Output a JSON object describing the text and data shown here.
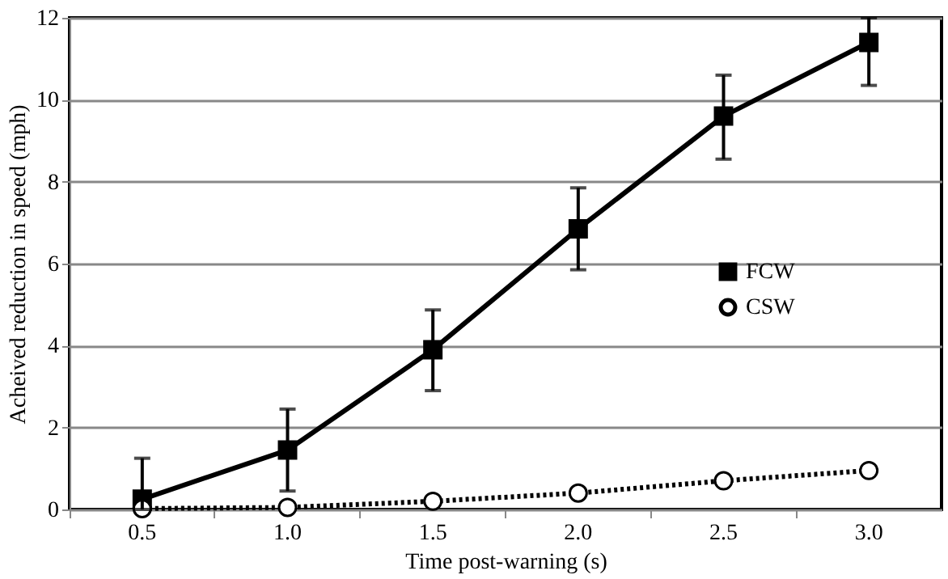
{
  "chart_data": {
    "type": "line",
    "xlabel": "Time post-warning (s)",
    "ylabel": "Acheived reduction in speed (mph)",
    "categories": [
      "0.5",
      "1.0",
      "1.5",
      "2.0",
      "2.5",
      "3.0"
    ],
    "series": [
      {
        "name": "FCW",
        "color": "#000000",
        "marker": "square",
        "line_style": "solid",
        "values": [
          0.25,
          1.45,
          3.9,
          6.85,
          9.6,
          11.4
        ],
        "errors": [
          [
            0,
            1.25
          ],
          [
            0.45,
            2.45
          ],
          [
            2.9,
            4.87
          ],
          [
            5.85,
            7.85
          ],
          [
            8.55,
            10.6
          ],
          [
            10.35,
            12
          ]
        ]
      },
      {
        "name": "CSW",
        "color": "#000000",
        "marker": "circle",
        "line_style": "dotted",
        "values": [
          0.02,
          0.05,
          0.2,
          0.4,
          0.7,
          0.95
        ]
      }
    ],
    "ylim": [
      0,
      12
    ],
    "yticks": [
      0,
      2,
      4,
      6,
      8,
      10,
      12
    ],
    "grid": "y",
    "legend": "right"
  }
}
